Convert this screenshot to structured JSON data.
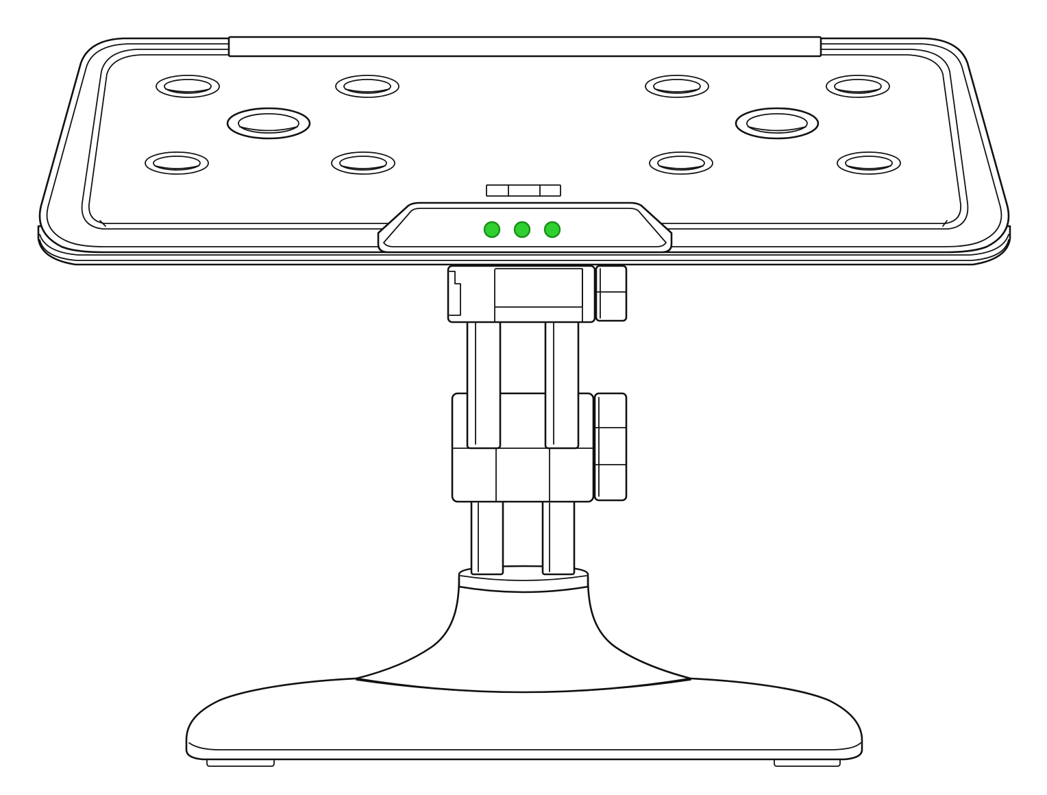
{
  "illustration": {
    "style": "black line drawing on white",
    "background_color": "#ffffff",
    "line_color": "#111111",
    "parts": {
      "platform": {
        "holes": {
          "small_count": 8,
          "large_count": 2
        },
        "indicator_lights": {
          "count": 3,
          "color": "#2fcf2f",
          "ring_color": "#1a8f1a"
        }
      },
      "adjustable_knobs": {
        "count": 2
      },
      "support_rods": {
        "count": 4
      },
      "base": {
        "feet_count": 2
      }
    }
  }
}
